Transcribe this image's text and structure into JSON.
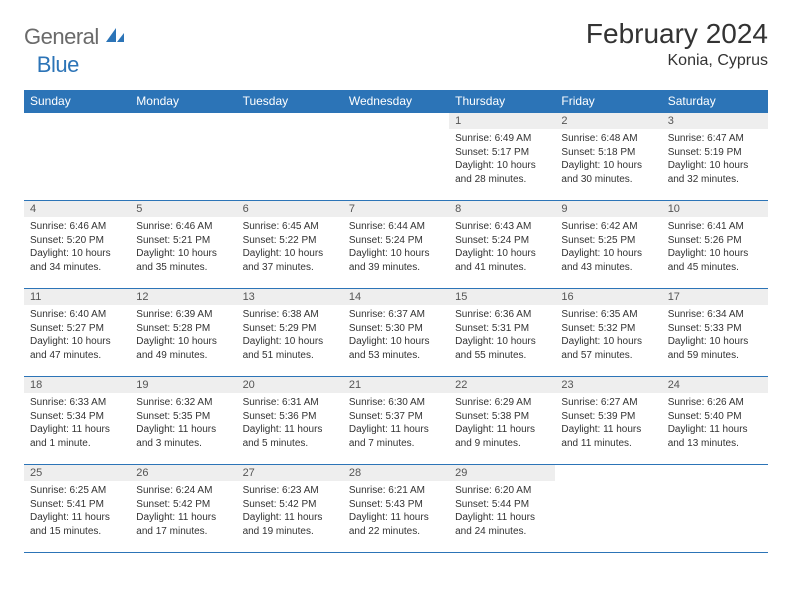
{
  "brand": {
    "general": "General",
    "blue": "Blue"
  },
  "header": {
    "title": "February 2024",
    "location": "Konia, Cyprus"
  },
  "colors": {
    "accent": "#2c74b7",
    "row_alt": "#eeeeee",
    "text": "#333333",
    "logo_gray": "#6a6a6a"
  },
  "weekdays": [
    "Sunday",
    "Monday",
    "Tuesday",
    "Wednesday",
    "Thursday",
    "Friday",
    "Saturday"
  ],
  "layout": {
    "first_weekday_index": 4,
    "days_in_month": 29
  },
  "days": {
    "1": {
      "sunrise": "6:49 AM",
      "sunset": "5:17 PM",
      "daylight": "10 hours and 28 minutes."
    },
    "2": {
      "sunrise": "6:48 AM",
      "sunset": "5:18 PM",
      "daylight": "10 hours and 30 minutes."
    },
    "3": {
      "sunrise": "6:47 AM",
      "sunset": "5:19 PM",
      "daylight": "10 hours and 32 minutes."
    },
    "4": {
      "sunrise": "6:46 AM",
      "sunset": "5:20 PM",
      "daylight": "10 hours and 34 minutes."
    },
    "5": {
      "sunrise": "6:46 AM",
      "sunset": "5:21 PM",
      "daylight": "10 hours and 35 minutes."
    },
    "6": {
      "sunrise": "6:45 AM",
      "sunset": "5:22 PM",
      "daylight": "10 hours and 37 minutes."
    },
    "7": {
      "sunrise": "6:44 AM",
      "sunset": "5:24 PM",
      "daylight": "10 hours and 39 minutes."
    },
    "8": {
      "sunrise": "6:43 AM",
      "sunset": "5:24 PM",
      "daylight": "10 hours and 41 minutes."
    },
    "9": {
      "sunrise": "6:42 AM",
      "sunset": "5:25 PM",
      "daylight": "10 hours and 43 minutes."
    },
    "10": {
      "sunrise": "6:41 AM",
      "sunset": "5:26 PM",
      "daylight": "10 hours and 45 minutes."
    },
    "11": {
      "sunrise": "6:40 AM",
      "sunset": "5:27 PM",
      "daylight": "10 hours and 47 minutes."
    },
    "12": {
      "sunrise": "6:39 AM",
      "sunset": "5:28 PM",
      "daylight": "10 hours and 49 minutes."
    },
    "13": {
      "sunrise": "6:38 AM",
      "sunset": "5:29 PM",
      "daylight": "10 hours and 51 minutes."
    },
    "14": {
      "sunrise": "6:37 AM",
      "sunset": "5:30 PM",
      "daylight": "10 hours and 53 minutes."
    },
    "15": {
      "sunrise": "6:36 AM",
      "sunset": "5:31 PM",
      "daylight": "10 hours and 55 minutes."
    },
    "16": {
      "sunrise": "6:35 AM",
      "sunset": "5:32 PM",
      "daylight": "10 hours and 57 minutes."
    },
    "17": {
      "sunrise": "6:34 AM",
      "sunset": "5:33 PM",
      "daylight": "10 hours and 59 minutes."
    },
    "18": {
      "sunrise": "6:33 AM",
      "sunset": "5:34 PM",
      "daylight": "11 hours and 1 minute."
    },
    "19": {
      "sunrise": "6:32 AM",
      "sunset": "5:35 PM",
      "daylight": "11 hours and 3 minutes."
    },
    "20": {
      "sunrise": "6:31 AM",
      "sunset": "5:36 PM",
      "daylight": "11 hours and 5 minutes."
    },
    "21": {
      "sunrise": "6:30 AM",
      "sunset": "5:37 PM",
      "daylight": "11 hours and 7 minutes."
    },
    "22": {
      "sunrise": "6:29 AM",
      "sunset": "5:38 PM",
      "daylight": "11 hours and 9 minutes."
    },
    "23": {
      "sunrise": "6:27 AM",
      "sunset": "5:39 PM",
      "daylight": "11 hours and 11 minutes."
    },
    "24": {
      "sunrise": "6:26 AM",
      "sunset": "5:40 PM",
      "daylight": "11 hours and 13 minutes."
    },
    "25": {
      "sunrise": "6:25 AM",
      "sunset": "5:41 PM",
      "daylight": "11 hours and 15 minutes."
    },
    "26": {
      "sunrise": "6:24 AM",
      "sunset": "5:42 PM",
      "daylight": "11 hours and 17 minutes."
    },
    "27": {
      "sunrise": "6:23 AM",
      "sunset": "5:42 PM",
      "daylight": "11 hours and 19 minutes."
    },
    "28": {
      "sunrise": "6:21 AM",
      "sunset": "5:43 PM",
      "daylight": "11 hours and 22 minutes."
    },
    "29": {
      "sunrise": "6:20 AM",
      "sunset": "5:44 PM",
      "daylight": "11 hours and 24 minutes."
    }
  },
  "labels": {
    "sunrise": "Sunrise:",
    "sunset": "Sunset:",
    "daylight": "Daylight:"
  }
}
